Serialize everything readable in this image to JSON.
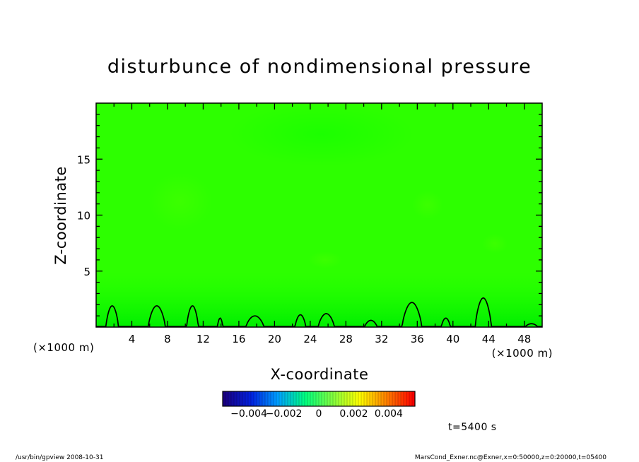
{
  "chart_data": {
    "type": "heatmap",
    "title": "disturbunce of nondimensional pressure",
    "xlabel": "X-coordinate",
    "ylabel": "Z-coordinate",
    "x_unit": "(×1000 m)",
    "y_unit": "(×1000 m)",
    "xlim": [
      0,
      50
    ],
    "ylim": [
      0,
      20
    ],
    "x_ticks": [
      "4",
      "8",
      "12",
      "16",
      "20",
      "24",
      "28",
      "32",
      "36",
      "40",
      "44",
      "48"
    ],
    "x_tick_values": [
      4,
      8,
      12,
      16,
      20,
      24,
      28,
      32,
      36,
      40,
      44,
      48
    ],
    "y_ticks": [
      "5",
      "10",
      "15"
    ],
    "y_tick_values": [
      5,
      10,
      15
    ],
    "field_color_min": "#00ee00",
    "field_color_max": "#3dff00",
    "contour_color": "#000000",
    "contour_bumps": [
      {
        "x": 1.8,
        "w": 1.4,
        "h": 1.9
      },
      {
        "x": 6.8,
        "w": 1.9,
        "h": 1.9
      },
      {
        "x": 10.8,
        "w": 1.3,
        "h": 1.9
      },
      {
        "x": 13.9,
        "w": 0.6,
        "h": 0.8
      },
      {
        "x": 17.8,
        "w": 2.0,
        "h": 1.0
      },
      {
        "x": 22.9,
        "w": 1.2,
        "h": 1.1
      },
      {
        "x": 25.8,
        "w": 1.8,
        "h": 1.2
      },
      {
        "x": 30.8,
        "w": 1.4,
        "h": 0.6
      },
      {
        "x": 35.4,
        "w": 2.2,
        "h": 2.2
      },
      {
        "x": 39.2,
        "w": 1.0,
        "h": 0.8
      },
      {
        "x": 43.4,
        "w": 1.8,
        "h": 2.6
      },
      {
        "x": 48.8,
        "w": 1.4,
        "h": 0.3
      }
    ],
    "colorbar": {
      "ticks": [
        "−0.004",
        "−0.002",
        "0",
        "0.002",
        "0.004"
      ],
      "tick_values": [
        -0.004,
        -0.002,
        0,
        0.002,
        0.004
      ],
      "range": [
        -0.0055,
        0.0055
      ],
      "colors": [
        "#1a0080",
        "#0020e0",
        "#00a0ff",
        "#00ff80",
        "#80ff40",
        "#ffff00",
        "#ff8000",
        "#ff0000"
      ]
    },
    "time_label": "t=5400 s",
    "grid": false,
    "legend": "colorbar-bottom"
  },
  "footer": {
    "left": "/usr/bin/gpview   2008-10-31",
    "right": "MarsCond_Exner.nc@Exner,x=0:50000,z=0:20000,t=05400"
  }
}
